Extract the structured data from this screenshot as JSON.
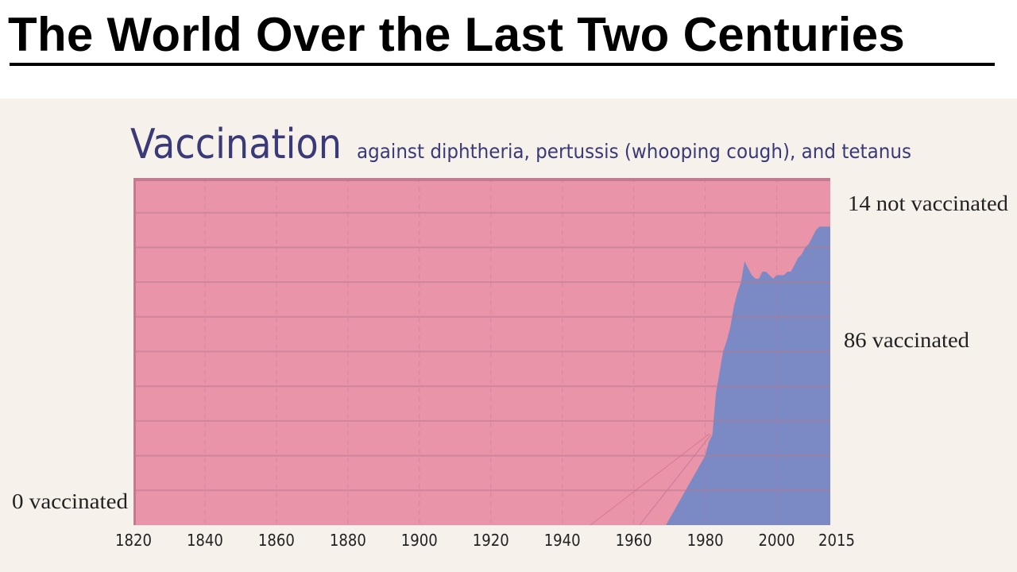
{
  "slide": {
    "title": "The World Over the Last Two Centuries"
  },
  "chart_data": {
    "type": "area",
    "title": "Vaccination",
    "subtitle": "against diphtheria, pertussis (whooping cough), and tetanus",
    "xlabel": "",
    "ylabel": "",
    "x_tick_labels": [
      "1820",
      "1840",
      "1860",
      "1880",
      "1900",
      "1920",
      "1940",
      "1960",
      "1980",
      "2000",
      "2015"
    ],
    "xlim": [
      1820,
      2015
    ],
    "ylim": [
      0,
      100
    ],
    "stacked": true,
    "grid": true,
    "annotations": {
      "top_right": "14 not vaccinated",
      "middle_right": "86 vaccinated",
      "bottom_left": "0 vaccinated"
    },
    "x": [
      1820,
      1960,
      1969,
      1980,
      1981,
      1982,
      1983,
      1984,
      1985,
      1986,
      1987,
      1988,
      1989,
      1990,
      1991,
      1992,
      1993,
      1994,
      1995,
      1996,
      1997,
      1998,
      1999,
      2000,
      2001,
      2002,
      2003,
      2004,
      2005,
      2006,
      2007,
      2008,
      2009,
      2010,
      2011,
      2012,
      2013,
      2014,
      2015
    ],
    "series": [
      {
        "name": "vaccinated",
        "color": "#7b89c4",
        "values": [
          0,
          0,
          0,
          20,
          24,
          26,
          38,
          44,
          50,
          53,
          57,
          63,
          67,
          70,
          76,
          74,
          72,
          71,
          71,
          73,
          73,
          72,
          71,
          72,
          72,
          72,
          73,
          73,
          75,
          77,
          78,
          80,
          81,
          83,
          85,
          86,
          86,
          86,
          86
        ]
      },
      {
        "name": "not vaccinated",
        "color": "#e994a9",
        "values": [
          100,
          100,
          100,
          80,
          76,
          74,
          62,
          56,
          50,
          47,
          43,
          37,
          33,
          30,
          24,
          26,
          28,
          29,
          29,
          27,
          27,
          28,
          29,
          28,
          28,
          28,
          27,
          27,
          25,
          23,
          22,
          20,
          19,
          17,
          15,
          14,
          14,
          14,
          14
        ]
      }
    ],
    "colors": {
      "title": "#3a3a78",
      "background": "#f6f2eb",
      "gridline": "#b87a90",
      "tick_text": "#222222"
    }
  }
}
